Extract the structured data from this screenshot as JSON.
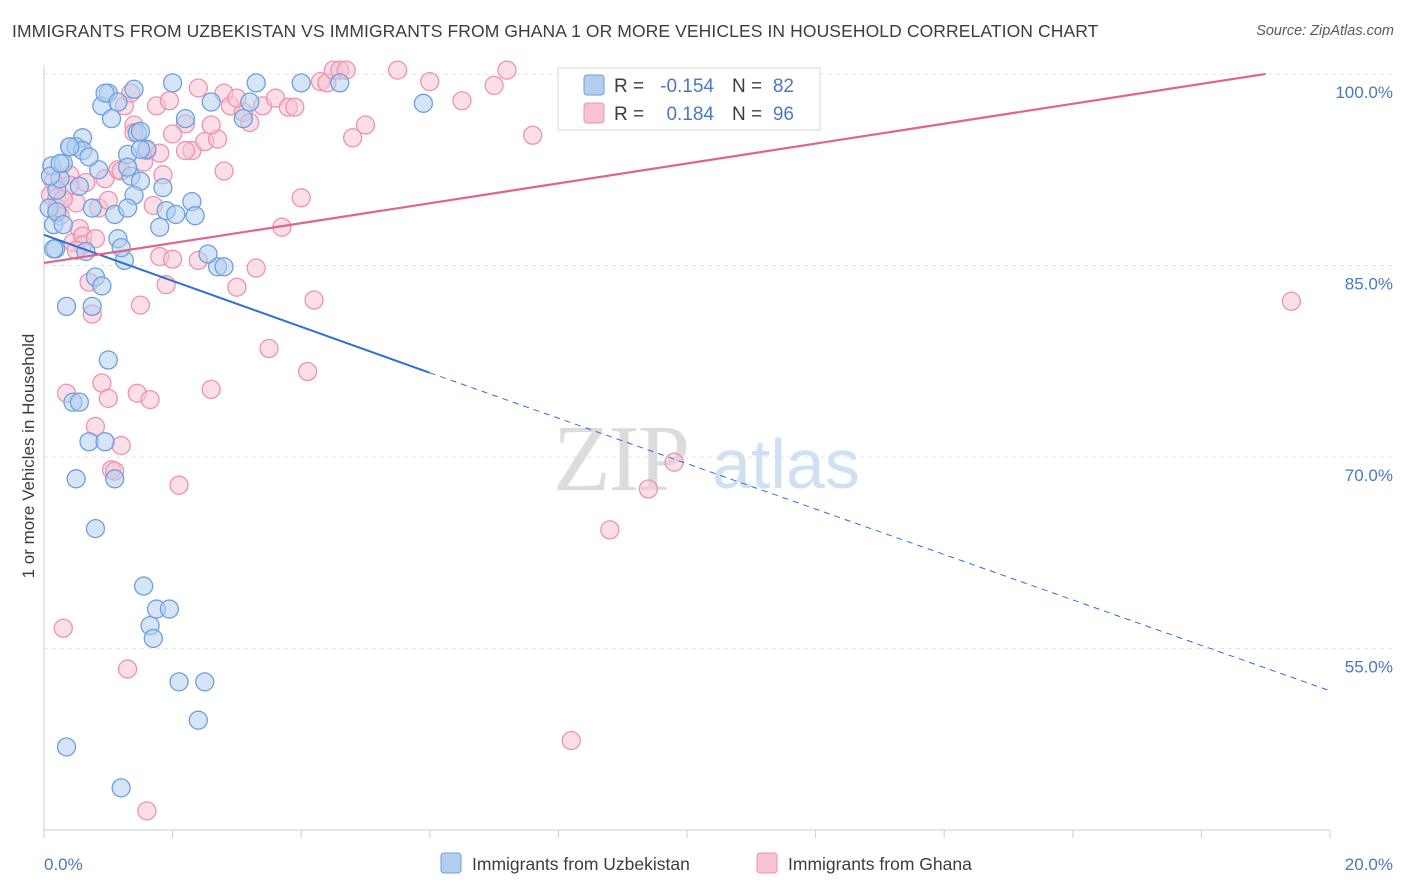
{
  "title": "IMMIGRANTS FROM UZBEKISTAN VS IMMIGRANTS FROM GHANA 1 OR MORE VEHICLES IN HOUSEHOLD CORRELATION CHART",
  "source": "Source: ZipAtlas.com",
  "watermark": {
    "zip": "ZIP",
    "atlas": "atlas"
  },
  "colors": {
    "uzbekistan_fill": "#b3cff0",
    "uzbekistan_stroke": "#6e9fdc",
    "uzbekistan_line": "#2f6fcf",
    "ghana_fill": "#f7c3d3",
    "ghana_stroke": "#ec93b0",
    "ghana_line": "#e0628e",
    "tick_label": "#4a78c2",
    "grid": "#e3e3e3"
  },
  "legend": {
    "rows": [
      {
        "r_label": "R =",
        "r_value": "-0.154",
        "n_label": "N =",
        "n_value": "82"
      },
      {
        "r_label": "R =",
        "r_value": "0.184",
        "n_label": "N =",
        "n_value": "96"
      }
    ]
  },
  "chart_data": {
    "type": "scatter",
    "title": "IMMIGRANTS FROM UZBEKISTAN VS IMMIGRANTS FROM GHANA 1 OR MORE VEHICLES IN HOUSEHOLD CORRELATION CHART",
    "xlabel": "",
    "ylabel": "1 or more Vehicles in Household",
    "xlim": [
      0,
      20
    ],
    "ylim": [
      40.8,
      100.7
    ],
    "x_tick_labels": [
      "0.0%",
      "20.0%"
    ],
    "y_ticks": [
      55,
      70,
      85,
      100
    ],
    "y_tick_labels": [
      "55.0%",
      "70.0%",
      "85.0%",
      "100.0%"
    ],
    "grid": true,
    "legend_position": "top-center and bottom",
    "series": [
      {
        "name": "Immigrants from Uzbekistan",
        "color": "#6e9fdc",
        "x": [
          0.08,
          0.12,
          0.15,
          0.18,
          0.2,
          0.25,
          0.3,
          0.35,
          0.4,
          0.45,
          0.5,
          0.55,
          0.6,
          0.65,
          0.7,
          0.75,
          0.8,
          0.85,
          0.9,
          0.95,
          1.0,
          1.05,
          1.1,
          1.15,
          1.2,
          1.25,
          1.3,
          1.35,
          1.4,
          1.45,
          1.5,
          1.55,
          1.6,
          1.65,
          1.7,
          1.75,
          1.8,
          1.85,
          1.9,
          1.95,
          2.0,
          2.1,
          2.2,
          2.3,
          2.4,
          2.5,
          2.6,
          2.7,
          2.8,
          3.1,
          3.2,
          3.3,
          4.0,
          4.6,
          5.9,
          0.1,
          0.2,
          0.3,
          0.5,
          0.6,
          0.7,
          0.8,
          0.9,
          1.0,
          1.1,
          1.2,
          1.3,
          1.4,
          1.5,
          0.35,
          0.55,
          0.75,
          0.95,
          1.15,
          1.5,
          2.05,
          2.35,
          2.55,
          1.3,
          0.4,
          0.25,
          0.15
        ],
        "y": [
          89.5,
          92.8,
          88.2,
          86.3,
          90.9,
          91.8,
          93.0,
          81.8,
          94.3,
          74.3,
          68.3,
          91.2,
          95.0,
          86.1,
          71.2,
          89.5,
          64.4,
          92.5,
          97.5,
          71.2,
          98.5,
          96.5,
          89.0,
          87.1,
          44.1,
          85.4,
          93.7,
          92.0,
          98.8,
          95.4,
          91.6,
          59.9,
          94.1,
          56.8,
          55.8,
          58.1,
          88.0,
          91.1,
          89.3,
          58.1,
          99.3,
          52.4,
          96.5,
          90.0,
          49.4,
          52.4,
          97.8,
          84.9,
          84.9,
          96.5,
          97.8,
          99.3,
          99.3,
          99.3,
          97.7,
          92.0,
          89.2,
          88.2,
          94.3,
          94.0,
          93.5,
          84.1,
          83.4,
          77.6,
          68.3,
          86.4,
          92.7,
          90.5,
          95.5,
          47.3,
          74.3,
          81.8,
          98.5,
          97.8,
          94.1,
          89.0,
          88.9,
          85.9,
          89.5,
          94.3,
          93.0,
          86.3
        ],
        "trend_solid": [
          [
            0,
            87.4
          ],
          [
            6.0,
            76.6
          ]
        ],
        "trend_dashed": [
          [
            6.0,
            76.6
          ],
          [
            20.0,
            51.7
          ]
        ]
      },
      {
        "name": "Immigrants from Ghana",
        "color": "#ec93b0",
        "x": [
          0.1,
          0.15,
          0.2,
          0.25,
          0.3,
          0.35,
          0.4,
          0.45,
          0.5,
          0.55,
          0.6,
          0.65,
          0.7,
          0.75,
          0.8,
          0.85,
          0.9,
          0.95,
          1.0,
          1.05,
          1.1,
          1.15,
          1.2,
          1.25,
          1.3,
          1.35,
          1.4,
          1.45,
          1.5,
          1.55,
          1.6,
          1.65,
          1.7,
          1.75,
          1.8,
          1.85,
          1.9,
          1.95,
          2.0,
          2.1,
          2.2,
          2.3,
          2.4,
          2.5,
          2.6,
          2.7,
          2.8,
          2.9,
          3.0,
          3.1,
          3.2,
          3.3,
          3.4,
          3.5,
          3.6,
          3.7,
          3.8,
          3.9,
          4.0,
          4.1,
          4.2,
          4.3,
          4.4,
          4.5,
          4.6,
          4.7,
          4.8,
          5.0,
          5.5,
          6.0,
          6.5,
          7.0,
          7.2,
          7.6,
          8.2,
          8.8,
          9.4,
          9.8,
          19.4,
          0.2,
          0.4,
          0.6,
          0.8,
          1.0,
          1.2,
          1.4,
          1.6,
          1.8,
          2.0,
          2.2,
          2.4,
          2.6,
          2.8,
          3.0,
          0.3,
          0.5
        ],
        "y": [
          90.5,
          91.6,
          90.3,
          88.9,
          56.6,
          75.0,
          92.1,
          86.8,
          89.9,
          87.9,
          87.3,
          91.5,
          83.7,
          81.2,
          72.4,
          89.5,
          75.8,
          91.8,
          74.6,
          69.0,
          68.9,
          92.5,
          70.9,
          97.5,
          53.4,
          98.5,
          96.0,
          75.0,
          81.9,
          93.1,
          42.3,
          74.5,
          89.7,
          97.5,
          85.7,
          92.1,
          83.5,
          97.9,
          85.5,
          67.8,
          96.1,
          94.0,
          98.9,
          94.7,
          75.3,
          94.9,
          98.5,
          97.5,
          83.3,
          97.0,
          96.2,
          84.8,
          97.5,
          78.5,
          98.1,
          88.0,
          97.4,
          97.4,
          90.3,
          76.7,
          82.3,
          99.4,
          99.3,
          100.3,
          100.3,
          100.3,
          95.0,
          96.0,
          100.3,
          99.4,
          97.9,
          99.1,
          100.3,
          95.2,
          47.8,
          64.3,
          67.5,
          69.6,
          82.2,
          89.5,
          91.3,
          86.6,
          87.1,
          90.1,
          92.4,
          95.4,
          94.0,
          93.8,
          95.3,
          94.0,
          85.4,
          96.0,
          92.4,
          98.1,
          90.2,
          86.2
        ],
        "trend_solid": [
          [
            0,
            85.2
          ],
          [
            19.0,
            100.0
          ]
        ]
      }
    ]
  }
}
